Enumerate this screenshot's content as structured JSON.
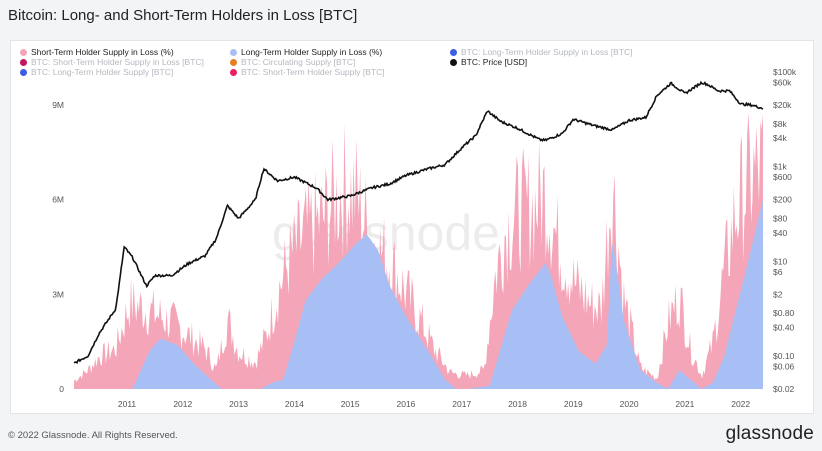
{
  "title": "Bitcoin: Long- and Short-Term Holders in Loss [BTC]",
  "watermark": "glassnode",
  "footer": "© 2022 Glassnode. All Rights Reserved.",
  "brand": "glassnode",
  "legend": [
    {
      "label": "Short-Term Holder Supply in Loss (%)",
      "color": "#f4a6b8",
      "active": true
    },
    {
      "label": "Long-Term Holder Supply in Loss (%)",
      "color": "#a8bff5",
      "active": true
    },
    {
      "label": "BTC: Long-Term Holder Supply in Loss [BTC]",
      "color": "#3d5ee0",
      "active": false
    },
    {
      "label": "BTC: Short-Term Holder Supply in Loss [BTC]",
      "color": "#c2185b",
      "active": false
    },
    {
      "label": "BTC: Circulating Supply [BTC]",
      "color": "#e67e22",
      "active": false
    },
    {
      "label": "BTC: Price [USD]",
      "color": "#111111",
      "active": true
    },
    {
      "label": "BTC: Long-Term Holder Supply [BTC]",
      "color": "#3d5ee0",
      "active": false
    },
    {
      "label": "BTC: Short-Term Holder Supply [BTC]",
      "color": "#e91e63",
      "active": false
    }
  ],
  "chart_data": {
    "type": "area",
    "title": "Bitcoin: Long- and Short-Term Holders in Loss [BTC]",
    "x_ticks": [
      "2011",
      "2012",
      "2013",
      "2014",
      "2015",
      "2016",
      "2017",
      "2018",
      "2019",
      "2020",
      "2021",
      "2022"
    ],
    "x_range": [
      2010.55,
      2022.9
    ],
    "y_left": {
      "ticks": [
        "0",
        "3M",
        "6M",
        "9M"
      ],
      "range": [
        0,
        9000000
      ]
    },
    "y_right": {
      "scale": "log",
      "ticks": [
        "$0.02",
        "$0.06",
        "$0.10",
        "$0.40",
        "$0.80",
        "$2",
        "$6",
        "$10",
        "$40",
        "$80",
        "$200",
        "$600",
        "$1k",
        "$4k",
        "$8k",
        "$20k",
        "$60k",
        "$100k"
      ],
      "range": [
        0.02,
        100000
      ]
    },
    "series": [
      {
        "name": "Long-Term Holder Supply in Loss (%)",
        "color": "#a8bff5",
        "x": [
          2010.55,
          2011.3,
          2011.6,
          2011.9,
          2012.1,
          2012.4,
          2012.7,
          2013.0,
          2013.2,
          2013.6,
          2013.9,
          2014.1,
          2014.3,
          2014.5,
          2014.7,
          2015.0,
          2015.3,
          2015.6,
          2015.8,
          2016.0,
          2016.2,
          2016.5,
          2016.9,
          2017.2,
          2017.4,
          2017.6,
          2018.0,
          2018.2,
          2018.4,
          2018.7,
          2019.0,
          2019.1,
          2019.3,
          2019.6,
          2019.9,
          2020.1,
          2020.2,
          2020.4,
          2020.7,
          2021.0,
          2021.2,
          2021.4,
          2021.6,
          2021.8,
          2022.0,
          2022.2,
          2022.4,
          2022.6,
          2022.9
        ],
        "values": [
          0,
          0,
          0,
          1200000,
          1600000,
          1400000,
          800000,
          300000,
          0,
          0,
          0,
          200000,
          300000,
          1500000,
          2800000,
          3500000,
          4000000,
          4600000,
          4900000,
          4400000,
          3300000,
          2300000,
          1200000,
          300000,
          0,
          0,
          100000,
          1300000,
          2500000,
          3300000,
          4000000,
          3600000,
          2300000,
          1200000,
          800000,
          1400000,
          4800000,
          2200000,
          600000,
          200000,
          0,
          600000,
          300000,
          0,
          200000,
          1000000,
          2400000,
          3800000,
          6000000
        ]
      },
      {
        "name": "Short-Term Holder Supply in Loss (%)",
        "color": "#f4a6b8",
        "x": [
          2010.55,
          2010.8,
          2011.0,
          2011.3,
          2011.55,
          2011.8,
          2012.0,
          2012.3,
          2012.6,
          2012.9,
          2013.1,
          2013.3,
          2013.5,
          2013.8,
          2014.0,
          2014.2,
          2014.4,
          2014.7,
          2015.0,
          2015.2,
          2015.4,
          2015.6,
          2015.8,
          2016.0,
          2016.2,
          2016.5,
          2016.8,
          2017.0,
          2017.3,
          2017.6,
          2017.9,
          2018.1,
          2018.3,
          2018.5,
          2018.8,
          2019.0,
          2019.2,
          2019.5,
          2019.8,
          2020.0,
          2020.2,
          2020.4,
          2020.7,
          2021.0,
          2021.2,
          2021.4,
          2021.6,
          2021.8,
          2022.0,
          2022.2,
          2022.4,
          2022.6,
          2022.9
        ],
        "values": [
          300000,
          700000,
          1200000,
          1500000,
          3200000,
          3000000,
          2800000,
          2500000,
          2000000,
          1500000,
          700000,
          2600000,
          1400000,
          1000000,
          2000000,
          3600000,
          4800000,
          5800000,
          6300000,
          7000000,
          7500000,
          7300000,
          6000000,
          5200000,
          4800000,
          3600000,
          2400000,
          1500000,
          600000,
          500000,
          700000,
          4200000,
          6000000,
          6600000,
          6800000,
          7300000,
          5600000,
          4000000,
          3200000,
          3000000,
          7800000,
          3400000,
          800000,
          400000,
          2500000,
          3500000,
          1500000,
          500000,
          1700000,
          4300000,
          6500000,
          7600000,
          8300000
        ]
      },
      {
        "name": "BTC: Price [USD]",
        "color": "#111111",
        "x": [
          2010.55,
          2010.8,
          2011.0,
          2011.3,
          2011.45,
          2011.6,
          2011.85,
          2012.0,
          2012.3,
          2012.6,
          2012.9,
          2013.1,
          2013.3,
          2013.5,
          2013.8,
          2013.95,
          2014.2,
          2014.5,
          2014.9,
          2015.1,
          2015.5,
          2015.9,
          2016.2,
          2016.5,
          2016.9,
          2017.2,
          2017.5,
          2017.75,
          2017.96,
          2018.2,
          2018.5,
          2018.9,
          2019.0,
          2019.3,
          2019.5,
          2019.9,
          2020.2,
          2020.5,
          2020.8,
          2021.0,
          2021.25,
          2021.5,
          2021.8,
          2021.9,
          2022.1,
          2022.3,
          2022.5,
          2022.7,
          2022.9
        ],
        "values": [
          0.07,
          0.1,
          0.3,
          1,
          20,
          12,
          3,
          5,
          5,
          9,
          13,
          30,
          150,
          80,
          200,
          900,
          500,
          600,
          350,
          200,
          240,
          360,
          430,
          650,
          900,
          1100,
          2500,
          4500,
          15000,
          9000,
          6500,
          3700,
          3600,
          5000,
          10000,
          7200,
          6000,
          9500,
          11000,
          32000,
          58000,
          35000,
          60000,
          55000,
          40000,
          40000,
          21000,
          20000,
          17000
        ]
      }
    ]
  }
}
